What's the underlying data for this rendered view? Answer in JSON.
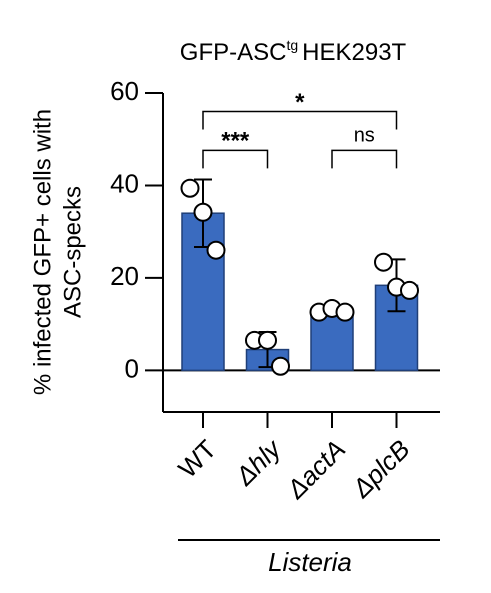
{
  "chart_data": {
    "type": "bar",
    "title": {
      "main": "GFP-ASC",
      "sup": "tg",
      "after": "HEK293T"
    },
    "y_label": [
      "% infected GFP+ cells with",
      "ASC-specks"
    ],
    "categories": [
      "WT",
      "Δhly",
      "ΔactA",
      "ΔplcB"
    ],
    "group_label": "Listeria",
    "values": [
      34,
      4.5,
      12.9,
      18.4
    ],
    "errors": [
      7.3,
      3.8,
      1,
      5.6
    ],
    "points": [
      [
        39.4,
        34.2,
        26
      ],
      [
        6.5,
        6.5,
        0.9
      ],
      [
        12.6,
        13.4,
        12.6
      ],
      [
        23.4,
        18,
        17.3
      ]
    ],
    "color": "#3a6bbf",
    "ylim": [
      -9,
      60
    ],
    "yticks": [
      0,
      20,
      40,
      60
    ],
    "annotations": [
      {
        "from": 0,
        "to": 3,
        "y": 56,
        "label": "*"
      },
      {
        "from": 0,
        "to": 1,
        "y": 47.6,
        "label": "***"
      },
      {
        "from": 2,
        "to": 3,
        "y": 47.6,
        "label": "ns"
      }
    ]
  }
}
